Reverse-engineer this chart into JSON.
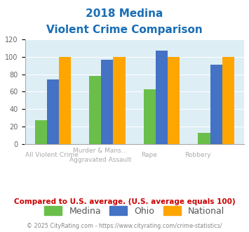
{
  "title_line1": "2018 Medina",
  "title_line2": "Violent Crime Comparison",
  "top_labels": [
    "",
    "Murder & Mans...",
    "",
    ""
  ],
  "bottom_labels": [
    "All Violent Crime",
    "Aggravated Assault",
    "Rape",
    "Robbery"
  ],
  "medina": [
    27,
    78,
    63,
    13
  ],
  "ohio": [
    74,
    97,
    107,
    91
  ],
  "national": [
    100,
    100,
    100,
    100
  ],
  "colors": {
    "medina": "#6abf4b",
    "ohio": "#4472c4",
    "national": "#ffa500"
  },
  "ylim": [
    0,
    120
  ],
  "yticks": [
    0,
    20,
    40,
    60,
    80,
    100,
    120
  ],
  "background_color": "#ddeef5",
  "title_color": "#1a6eb5",
  "footer_text": "Compared to U.S. average. (U.S. average equals 100)",
  "footer_color": "#cc0000",
  "copyright_text": "© 2025 CityRating.com - https://www.cityrating.com/crime-statistics/",
  "copyright_color": "#888888",
  "bar_width": 0.22,
  "legend_labels": [
    "Medina",
    "Ohio",
    "National"
  ],
  "label_color": "#aaaaaa"
}
